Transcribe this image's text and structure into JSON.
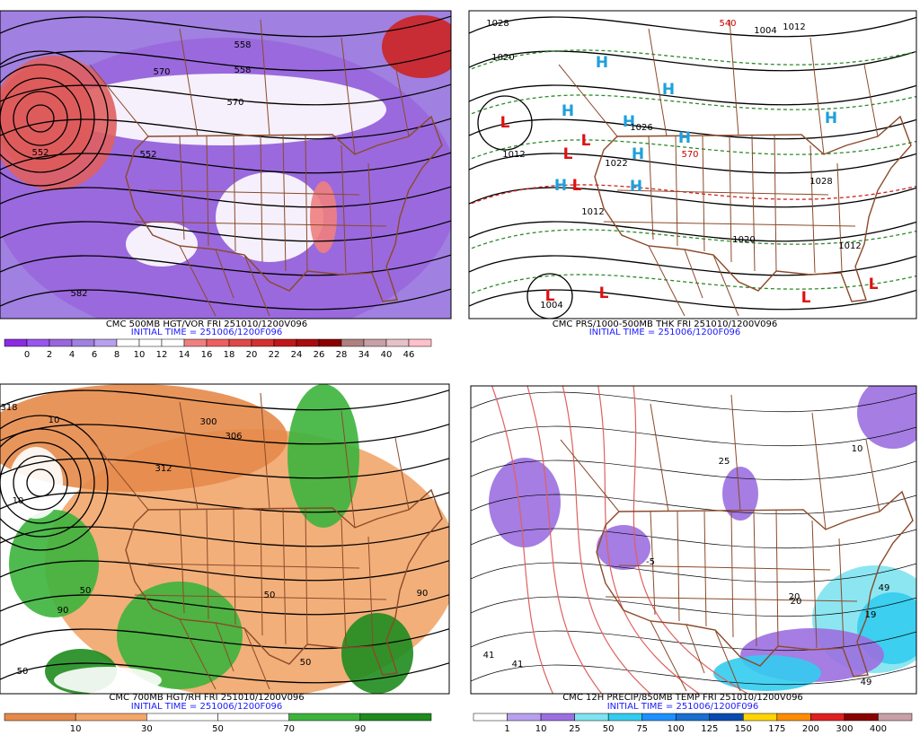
{
  "panels": [
    {
      "title": "CMC 500MB HGT/VOR FRI 251010/1200V096",
      "initial_time": "INITIAL TIME = 251006/1200F096",
      "colorbar": {
        "labels": [
          "0",
          "2",
          "4",
          "6",
          "8",
          "10",
          "12",
          "14",
          "16",
          "18",
          "20",
          "22",
          "24",
          "26",
          "28",
          "34",
          "40",
          "46"
        ],
        "colors": [
          "#8a2be2",
          "#9955ee",
          "#9966dd",
          "#a080e0",
          "#b7a0ee",
          "#ffffff",
          "#ffffff",
          "#ffffff",
          "#f08080",
          "#ee6060",
          "#e04848",
          "#d43030",
          "#c01818",
          "#a80c0c",
          "#8b0000",
          "#b08080",
          "#c8a0a8",
          "#e8c0c8",
          "#ffc0cb"
        ]
      },
      "map_labels": [
        "558",
        "558",
        "570",
        "570",
        "552",
        "552",
        "582"
      ]
    },
    {
      "title": "CMC PRS/1000-500MB THK FRI 251010/1200V096",
      "initial_time": "INITIAL TIME = 251006/1200F096",
      "map_labels": [
        "L",
        "L",
        "L",
        "L",
        "L",
        "L",
        "L",
        "L",
        "H",
        "H",
        "H",
        "H",
        "H",
        "H",
        "H",
        "H",
        "H",
        "1028",
        "1020",
        "1012",
        "1012",
        "1004",
        "1026",
        "1022",
        "1028",
        "1020",
        "1012",
        "540",
        "570",
        "1004",
        "1012"
      ]
    },
    {
      "title": "CMC 700MB HGT/RH FRI 251010/1200V096",
      "initial_time": "INITIAL TIME = 251006/1200F096",
      "colorbar": {
        "labels": [
          "10",
          "30",
          "50",
          "70",
          "90"
        ],
        "colors": [
          "#e58a4a",
          "#f2a66a",
          "#ffffff",
          "#ffffff",
          "#3cb43c",
          "#1e8c1e"
        ]
      },
      "map_labels": [
        "318",
        "312",
        "306",
        "300",
        "10",
        "50",
        "90",
        "50",
        "50",
        "90",
        "10",
        "50"
      ]
    },
    {
      "title": "CMC 12H PRECIP/850MB TEMP FRI 251010/1200V096",
      "initial_time": "INITIAL TIME = 251006/1200F096",
      "colorbar": {
        "labels": [
          "1",
          "10",
          "25",
          "50",
          "75",
          "100",
          "125",
          "150",
          "175",
          "200",
          "300",
          "400"
        ],
        "colors": [
          "#ffffff",
          "#b8a0ee",
          "#9b6fe0",
          "#7fe3f0",
          "#33ccee",
          "#1e90ff",
          "#1a6fd0",
          "#0a4ab0",
          "#ffd400",
          "#ff8c00",
          "#e02020",
          "#8b0000",
          "#c8a0a8"
        ]
      },
      "map_labels": [
        "41",
        "49",
        "19",
        "10",
        "20",
        "41",
        "49",
        "25",
        "20",
        "-5"
      ]
    }
  ]
}
